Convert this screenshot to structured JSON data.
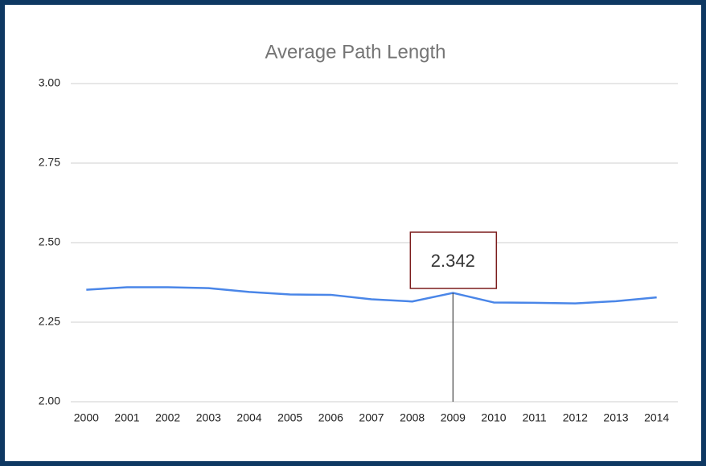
{
  "chart_data": {
    "type": "line",
    "title": "Average Path Length",
    "categories": [
      "2000",
      "2001",
      "2002",
      "2003",
      "2004",
      "2005",
      "2006",
      "2007",
      "2008",
      "2009",
      "2010",
      "2011",
      "2012",
      "2013",
      "2014"
    ],
    "values": [
      2.352,
      2.36,
      2.36,
      2.357,
      2.345,
      2.337,
      2.336,
      2.322,
      2.315,
      2.342,
      2.312,
      2.311,
      2.309,
      2.316,
      2.328
    ],
    "value_labels": [
      null,
      null,
      null,
      null,
      null,
      null,
      null,
      null,
      null,
      "2.342",
      null,
      null,
      null,
      null,
      null
    ],
    "color": "#4a86e8",
    "ylim": [
      2.0,
      3.0
    ],
    "yticks": [
      {
        "value": 2.0,
        "label": "2.00"
      },
      {
        "value": 2.25,
        "label": "2.25"
      },
      {
        "value": 2.5,
        "label": "2.50"
      },
      {
        "value": 2.75,
        "label": "2.75"
      },
      {
        "value": 3.0,
        "label": "3.00"
      }
    ],
    "grid": true
  }
}
